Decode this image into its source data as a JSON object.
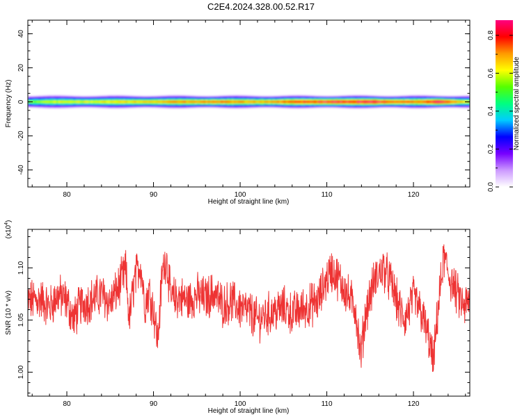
{
  "title": "C2E4.2024.328.00.52.R17",
  "chart_data": [
    {
      "type": "heatmap",
      "xlabel": "Height of straight line (km)",
      "ylabel": "Frequency (Hz)",
      "xlim": [
        75.5,
        126.5
      ],
      "ylim": [
        -50,
        48
      ],
      "xticks": [
        80,
        90,
        100,
        110,
        120
      ],
      "yticks": [
        40,
        20,
        0,
        -20,
        -40
      ],
      "yticklabels": [
        "40",
        "20",
        "0",
        "-20",
        "-40"
      ],
      "band_center_hz": 0,
      "band_amplitude_profile": [
        {
          "x": 75.5,
          "a": 0.55
        },
        {
          "x": 78,
          "a": 0.6
        },
        {
          "x": 82,
          "a": 0.62
        },
        {
          "x": 86,
          "a": 0.66
        },
        {
          "x": 90,
          "a": 0.68
        },
        {
          "x": 94,
          "a": 0.72
        },
        {
          "x": 98,
          "a": 0.75
        },
        {
          "x": 101,
          "a": 0.7
        },
        {
          "x": 104,
          "a": 0.74
        },
        {
          "x": 108,
          "a": 0.8
        },
        {
          "x": 111,
          "a": 0.88
        },
        {
          "x": 113,
          "a": 0.82
        },
        {
          "x": 115,
          "a": 0.9
        },
        {
          "x": 118,
          "a": 0.76
        },
        {
          "x": 121,
          "a": 0.74
        },
        {
          "x": 123,
          "a": 0.9
        },
        {
          "x": 125,
          "a": 0.72
        },
        {
          "x": 126.5,
          "a": 0.6
        }
      ],
      "colorbar": {
        "label": "Normalized spectral amplitude",
        "range": [
          0,
          0.88
        ],
        "ticks": [
          0.0,
          0.2,
          0.4,
          0.6,
          0.8
        ],
        "ticklabels": [
          "0.0",
          "0.2",
          "0.4",
          "0.6",
          "0.8"
        ],
        "colors": [
          "#ffffff",
          "#cc99ff",
          "#7700ff",
          "#0000ff",
          "#00ccff",
          "#00ff80",
          "#55ff00",
          "#ffff00",
          "#ff9900",
          "#ff0000",
          "#ff0080"
        ]
      }
    },
    {
      "type": "line",
      "xlabel": "Height of straight line (km)",
      "ylabel": "SNR (10 * v/v)",
      "multiplier": "(x10^4)",
      "xlim": [
        75.5,
        126.5
      ],
      "ylim": [
        0.977,
        1.137
      ],
      "xticks": [
        80,
        90,
        100,
        110,
        120
      ],
      "yticks": [
        1.0,
        1.05,
        1.1
      ],
      "yticklabels": [
        "1.00",
        "1.05",
        "1.10"
      ],
      "color": "#ee3333",
      "series": [
        {
          "x": [
            75.5,
            77,
            78,
            79,
            80,
            80.8,
            81.5,
            83,
            84,
            85,
            86,
            86.8,
            87.2,
            87.8,
            88.5,
            89,
            89.5,
            90,
            90.5,
            91,
            91.5,
            92,
            93,
            94,
            95,
            96,
            97,
            98,
            99,
            100,
            101,
            102,
            103,
            104,
            105,
            106,
            107,
            108,
            109,
            109.8,
            110.5,
            111.5,
            112.5,
            113.3,
            113.9,
            114.5,
            115.5,
            116.5,
            117.5,
            118.3,
            119,
            120,
            121,
            121.8,
            122.3,
            122.8,
            123.5,
            124.2,
            125,
            125.8,
            126.5
          ],
          "y": [
            1.068,
            1.07,
            1.062,
            1.074,
            1.068,
            1.05,
            1.064,
            1.07,
            1.075,
            1.066,
            1.082,
            1.098,
            1.05,
            1.088,
            1.105,
            1.065,
            1.078,
            1.06,
            1.03,
            1.095,
            1.11,
            1.07,
            1.072,
            1.068,
            1.074,
            1.071,
            1.076,
            1.064,
            1.068,
            1.062,
            1.058,
            1.05,
            1.055,
            1.058,
            1.062,
            1.056,
            1.06,
            1.064,
            1.068,
            1.086,
            1.098,
            1.088,
            1.072,
            1.062,
            1.015,
            1.058,
            1.088,
            1.1,
            1.084,
            1.062,
            1.05,
            1.072,
            1.055,
            1.03,
            1.008,
            1.058,
            1.11,
            1.09,
            1.075,
            1.062,
            1.068
          ]
        }
      ]
    }
  ]
}
